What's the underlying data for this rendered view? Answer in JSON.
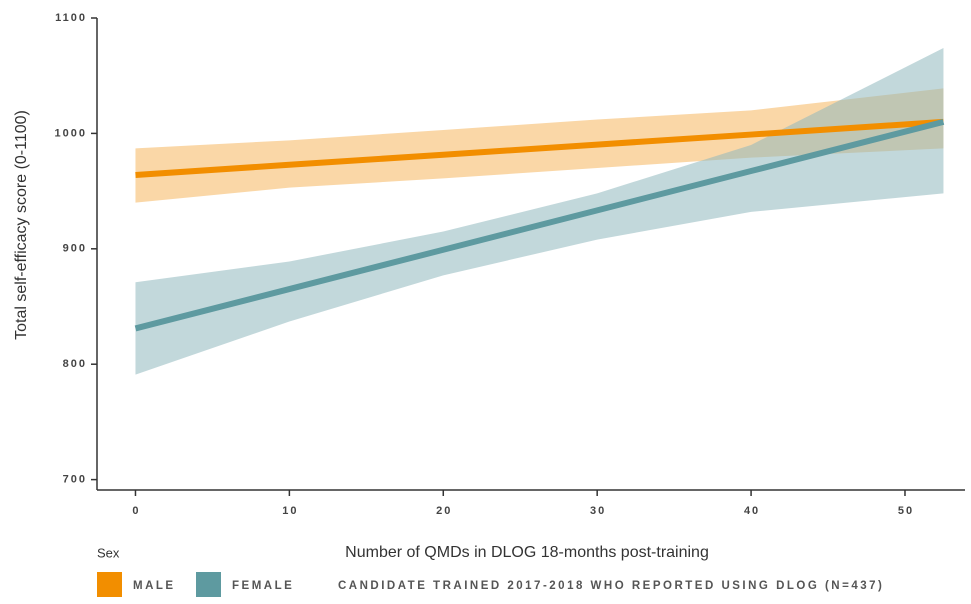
{
  "chart_data": {
    "type": "line",
    "x_label": "Number of QMDs in DLOG 18-months post-training",
    "y_label": "Total self-efficacy score (0-1100)",
    "legend_title": "Sex",
    "caption": "CANDIDATE TRAINED 2017-2018 WHO REPORTED USING DLOG (N=437)",
    "xlim": [
      -2.5,
      53.9
    ],
    "ylim": [
      691,
      1100
    ],
    "xticks": [
      0,
      10,
      20,
      30,
      40,
      50
    ],
    "yticks": [
      700,
      800,
      900,
      1000,
      1100
    ],
    "series": [
      {
        "name": "MALE",
        "color": "#f28e00",
        "band_color": "#f5b75f",
        "x": [
          0,
          10,
          20,
          30,
          40,
          52.5
        ],
        "values": [
          964,
          972.8,
          981.5,
          990.3,
          999.0,
          1010
        ],
        "lower": [
          940,
          953,
          961,
          970,
          979,
          987
        ],
        "upper": [
          987,
          994,
          1003,
          1012,
          1020,
          1039
        ]
      },
      {
        "name": "FEMALE",
        "color": "#5e9aa0",
        "band_color": "#8fb8bd",
        "x": [
          0,
          10,
          20,
          30,
          40,
          52.5
        ],
        "values": [
          831,
          865.1,
          899.2,
          933.3,
          967.4,
          1010
        ],
        "lower": [
          791,
          837,
          877,
          908,
          932,
          948
        ],
        "upper": [
          871,
          889,
          915,
          948,
          990,
          1074
        ]
      }
    ]
  }
}
